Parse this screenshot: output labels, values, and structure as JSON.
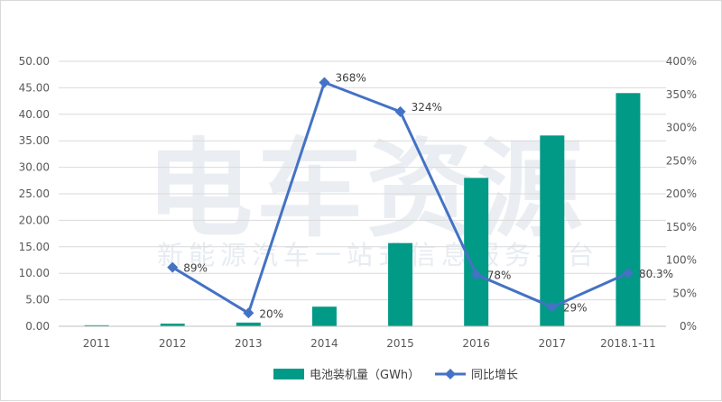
{
  "chart_data": {
    "type": "bar",
    "categories": [
      "2011",
      "2012",
      "2013",
      "2014",
      "2015",
      "2016",
      "2017",
      "2018.1-11"
    ],
    "series": [
      {
        "name": "电池装机量（GWh）",
        "type": "bar",
        "axis": "left",
        "color": "#009a86",
        "values": [
          0.2,
          0.5,
          0.7,
          3.7,
          15.7,
          28.0,
          36.0,
          44.0
        ]
      },
      {
        "name": "同比增长",
        "type": "line",
        "axis": "right",
        "color": "#4472c4",
        "values": [
          null,
          89,
          20,
          368,
          324,
          78,
          29,
          80.3
        ],
        "labels": [
          "",
          "89%",
          "20%",
          "368%",
          "324%",
          "78%",
          "29%",
          "80.3%"
        ]
      }
    ],
    "y_left": {
      "range": [
        0,
        50
      ],
      "ticks": [
        "0.00",
        "5.00",
        "10.00",
        "15.00",
        "20.00",
        "25.00",
        "30.00",
        "35.00",
        "40.00",
        "45.00",
        "50.00"
      ]
    },
    "y_right": {
      "range": [
        0,
        400
      ],
      "ticks": [
        "0%",
        "50%",
        "100%",
        "150%",
        "200%",
        "250%",
        "300%",
        "350%",
        "400%"
      ]
    },
    "grid": true,
    "legend_position": "bottom"
  },
  "watermark": {
    "title": "电车资源",
    "subtitle": "新能源汽车一站式信息服务平台"
  }
}
